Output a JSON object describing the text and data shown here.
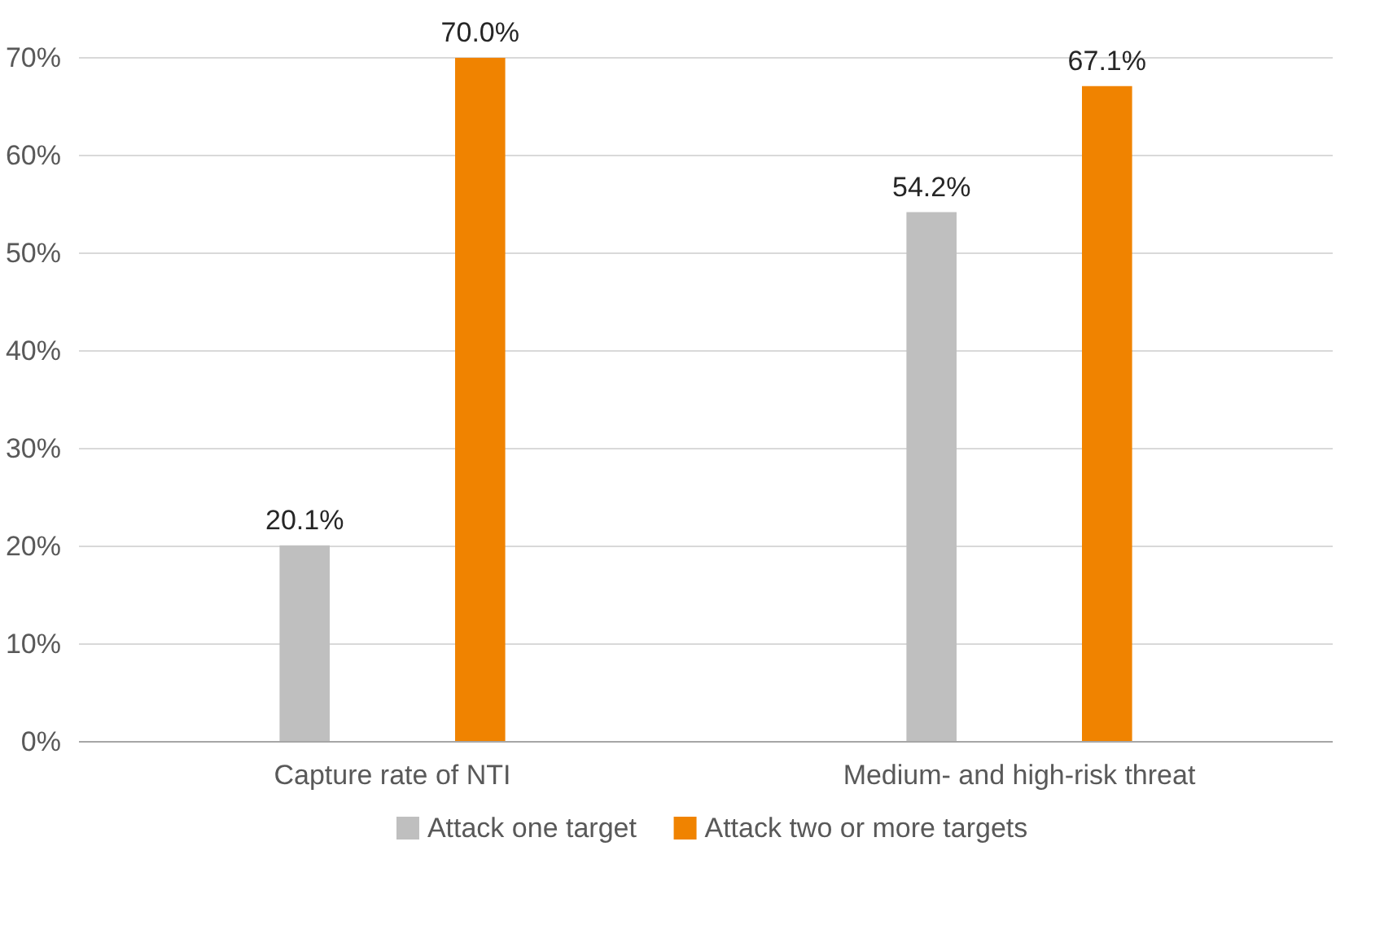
{
  "chart_data": {
    "type": "bar",
    "categories": [
      "Capture rate of NTI",
      "Medium- and high-risk threat"
    ],
    "series": [
      {
        "name": "Attack one target",
        "color": "#bfbfbf",
        "values": [
          20.1,
          54.2
        ],
        "value_labels": [
          "20.1%",
          "54.2%"
        ]
      },
      {
        "name": "Attack two or more targets",
        "color": "#f08300",
        "values": [
          70.0,
          67.1
        ],
        "value_labels": [
          "70.0%",
          "67.1%"
        ]
      }
    ],
    "ylim": [
      0,
      70
    ],
    "yticks": [
      {
        "value": 0,
        "label": "0%"
      },
      {
        "value": 10,
        "label": "10%"
      },
      {
        "value": 20,
        "label": "20%"
      },
      {
        "value": 30,
        "label": "30%"
      },
      {
        "value": 40,
        "label": "40%"
      },
      {
        "value": 50,
        "label": "50%"
      },
      {
        "value": 60,
        "label": "60%"
      },
      {
        "value": 70,
        "label": "70%"
      }
    ],
    "grid": "y",
    "legend": "bottom"
  }
}
